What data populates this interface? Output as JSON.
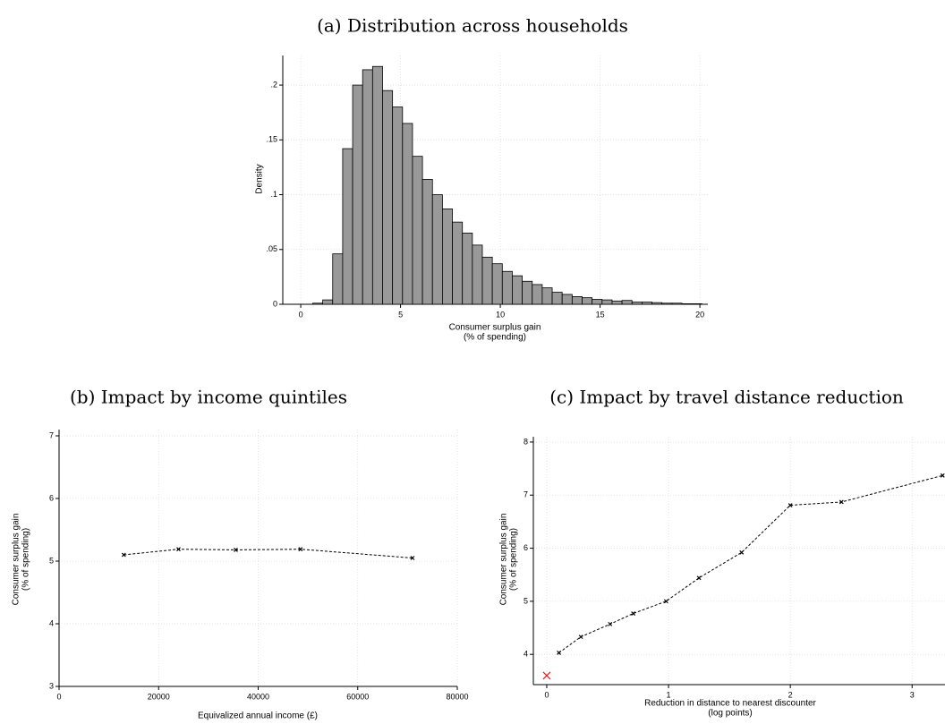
{
  "chart_data": [
    {
      "type": "histogram",
      "title": "(a) Distribution across households",
      "xlabel": [
        "Consumer surplus gain",
        "(% of spending)"
      ],
      "ylabel": [
        "Density"
      ],
      "bins": [
        0.6,
        1.1,
        1.6,
        2.1,
        2.6,
        3.1,
        3.6,
        4.1,
        4.6,
        5.1,
        5.6,
        6.1,
        6.6,
        7.1,
        7.6,
        8.1,
        8.6,
        9.1,
        9.6,
        10.1,
        10.6,
        11.1,
        11.6,
        12.1,
        12.6,
        13.1,
        13.6,
        14.1,
        14.6,
        15.1,
        15.6,
        16.1,
        16.6,
        17.1,
        17.6,
        18.1,
        18.6,
        19.1,
        19.6,
        20.1
      ],
      "values": [
        0.001,
        0.004,
        0.046,
        0.142,
        0.2,
        0.214,
        0.217,
        0.195,
        0.18,
        0.165,
        0.135,
        0.114,
        0.1,
        0.087,
        0.075,
        0.065,
        0.054,
        0.043,
        0.037,
        0.03,
        0.026,
        0.021,
        0.018,
        0.015,
        0.011,
        0.009,
        0.007,
        0.006,
        0.0045,
        0.004,
        0.003,
        0.0035,
        0.002,
        0.002,
        0.0015,
        0.001,
        0.001,
        0.0005,
        0.0005
      ],
      "color": "#999999",
      "xlim": [
        -0.9,
        20.4
      ],
      "ylim": [
        0,
        0.227
      ],
      "xticks": [
        0,
        5,
        10,
        15,
        20
      ],
      "yticks": [
        0,
        {
          "value": 0.05,
          "label": ".05"
        },
        {
          "value": 0.1,
          "label": ".1"
        },
        {
          "value": 0.15,
          "label": ".15"
        },
        {
          "value": 0.2,
          "label": ".2"
        }
      ],
      "grid": true
    },
    {
      "type": "line",
      "title": "(b) Impact by income quintiles",
      "xlabel": [
        "Equivalized annual income (£)"
      ],
      "ylabel": [
        "Consumer surplus gain",
        "(% of spending)"
      ],
      "series": [
        {
          "color": "#000000",
          "x": [
            13000,
            24000,
            35500,
            48500,
            71000
          ],
          "values": [
            5.1,
            5.19,
            5.18,
            5.19,
            5.05
          ]
        }
      ],
      "xlim": [
        0,
        80000
      ],
      "ylim": [
        3,
        7.1
      ],
      "xticks": [
        0,
        20000,
        40000,
        60000,
        80000
      ],
      "yticks": [
        3,
        4,
        5,
        6,
        7
      ],
      "grid": true
    },
    {
      "type": "line",
      "title": "(c) Impact by travel distance reduction",
      "xlabel": [
        "Reduction in distance to nearest discounter",
        "(log points)"
      ],
      "ylabel": [
        "Consumer surplus gain",
        "(% of spending)"
      ],
      "series": [
        {
          "color": "#000000",
          "x": [
            0.1,
            0.28,
            0.52,
            0.71,
            0.98,
            1.25,
            1.6,
            2.0,
            2.42,
            3.25
          ],
          "values": [
            4.03,
            4.33,
            4.57,
            4.77,
            5.0,
            5.44,
            5.92,
            6.81,
            6.87,
            7.37
          ]
        },
        {
          "color": "#e31a1c",
          "x": [
            0
          ],
          "values": [
            3.6
          ],
          "line": "none"
        }
      ],
      "xlim": [
        -0.11,
        3.27
      ],
      "ylim": [
        3.43,
        8.1
      ],
      "xticks": [
        0,
        1,
        2,
        3
      ],
      "yticks": [
        4,
        5,
        6,
        7,
        8
      ],
      "grid": true
    }
  ]
}
